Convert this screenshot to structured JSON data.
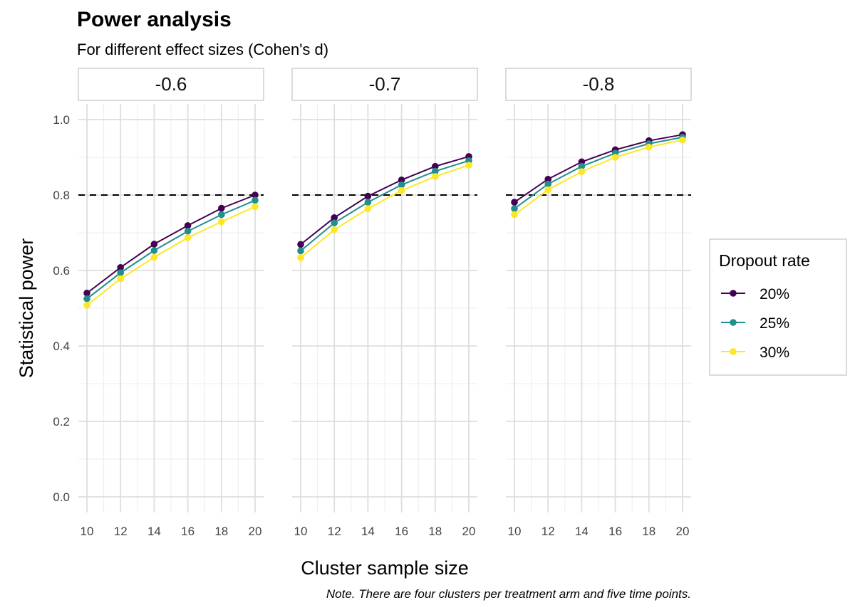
{
  "chart_data": {
    "type": "line",
    "title": "Power analysis",
    "subtitle": "For different effect sizes (Cohen's d)",
    "xlabel": "Cluster sample size",
    "ylabel": "Statistical power",
    "caption": "Note. There are four clusters per treatment arm and five time points.",
    "x": [
      10,
      12,
      14,
      16,
      18,
      20
    ],
    "x_ticks": [
      10,
      12,
      14,
      16,
      18,
      20
    ],
    "x_tick_labels": [
      "10",
      "12",
      "14",
      "16",
      "18",
      "20"
    ],
    "xlim": [
      10,
      20
    ],
    "ylim": [
      0,
      1
    ],
    "y_ticks": [
      0,
      0.2,
      0.4,
      0.6,
      0.8,
      1.0
    ],
    "y_tick_labels": [
      "0.0",
      "0.2",
      "0.4",
      "0.6",
      "0.8",
      "1.0"
    ],
    "reference_line": 0.8,
    "grid": true,
    "legend": {
      "title": "Dropout rate",
      "position": "right",
      "entries": [
        {
          "label": "20%",
          "color": "#440154"
        },
        {
          "label": "25%",
          "color": "#21908C"
        },
        {
          "label": "30%",
          "color": "#FDE725"
        }
      ]
    },
    "facets": [
      {
        "label": "-0.6",
        "series": [
          {
            "name": "20%",
            "color": "#440154",
            "values": [
              0.54,
              0.608,
              0.67,
              0.719,
              0.765,
              0.8
            ]
          },
          {
            "name": "25%",
            "color": "#21908C",
            "values": [
              0.525,
              0.594,
              0.653,
              0.704,
              0.748,
              0.786
            ]
          },
          {
            "name": "30%",
            "color": "#FDE725",
            "values": [
              0.508,
              0.578,
              0.635,
              0.687,
              0.729,
              0.769
            ]
          }
        ]
      },
      {
        "label": "-0.7",
        "series": [
          {
            "name": "20%",
            "color": "#440154",
            "values": [
              0.669,
              0.74,
              0.797,
              0.84,
              0.876,
              0.902
            ]
          },
          {
            "name": "25%",
            "color": "#21908C",
            "values": [
              0.652,
              0.726,
              0.781,
              0.827,
              0.863,
              0.891
            ]
          },
          {
            "name": "30%",
            "color": "#FDE725",
            "values": [
              0.634,
              0.708,
              0.764,
              0.812,
              0.849,
              0.879
            ]
          }
        ]
      },
      {
        "label": "-0.8",
        "series": [
          {
            "name": "20%",
            "color": "#440154",
            "values": [
              0.781,
              0.842,
              0.888,
              0.92,
              0.944,
              0.96
            ]
          },
          {
            "name": "25%",
            "color": "#21908C",
            "values": [
              0.764,
              0.829,
              0.876,
              0.911,
              0.936,
              0.953
            ]
          },
          {
            "name": "30%",
            "color": "#FDE725",
            "values": [
              0.748,
              0.814,
              0.862,
              0.9,
              0.927,
              0.946
            ]
          }
        ]
      }
    ]
  }
}
